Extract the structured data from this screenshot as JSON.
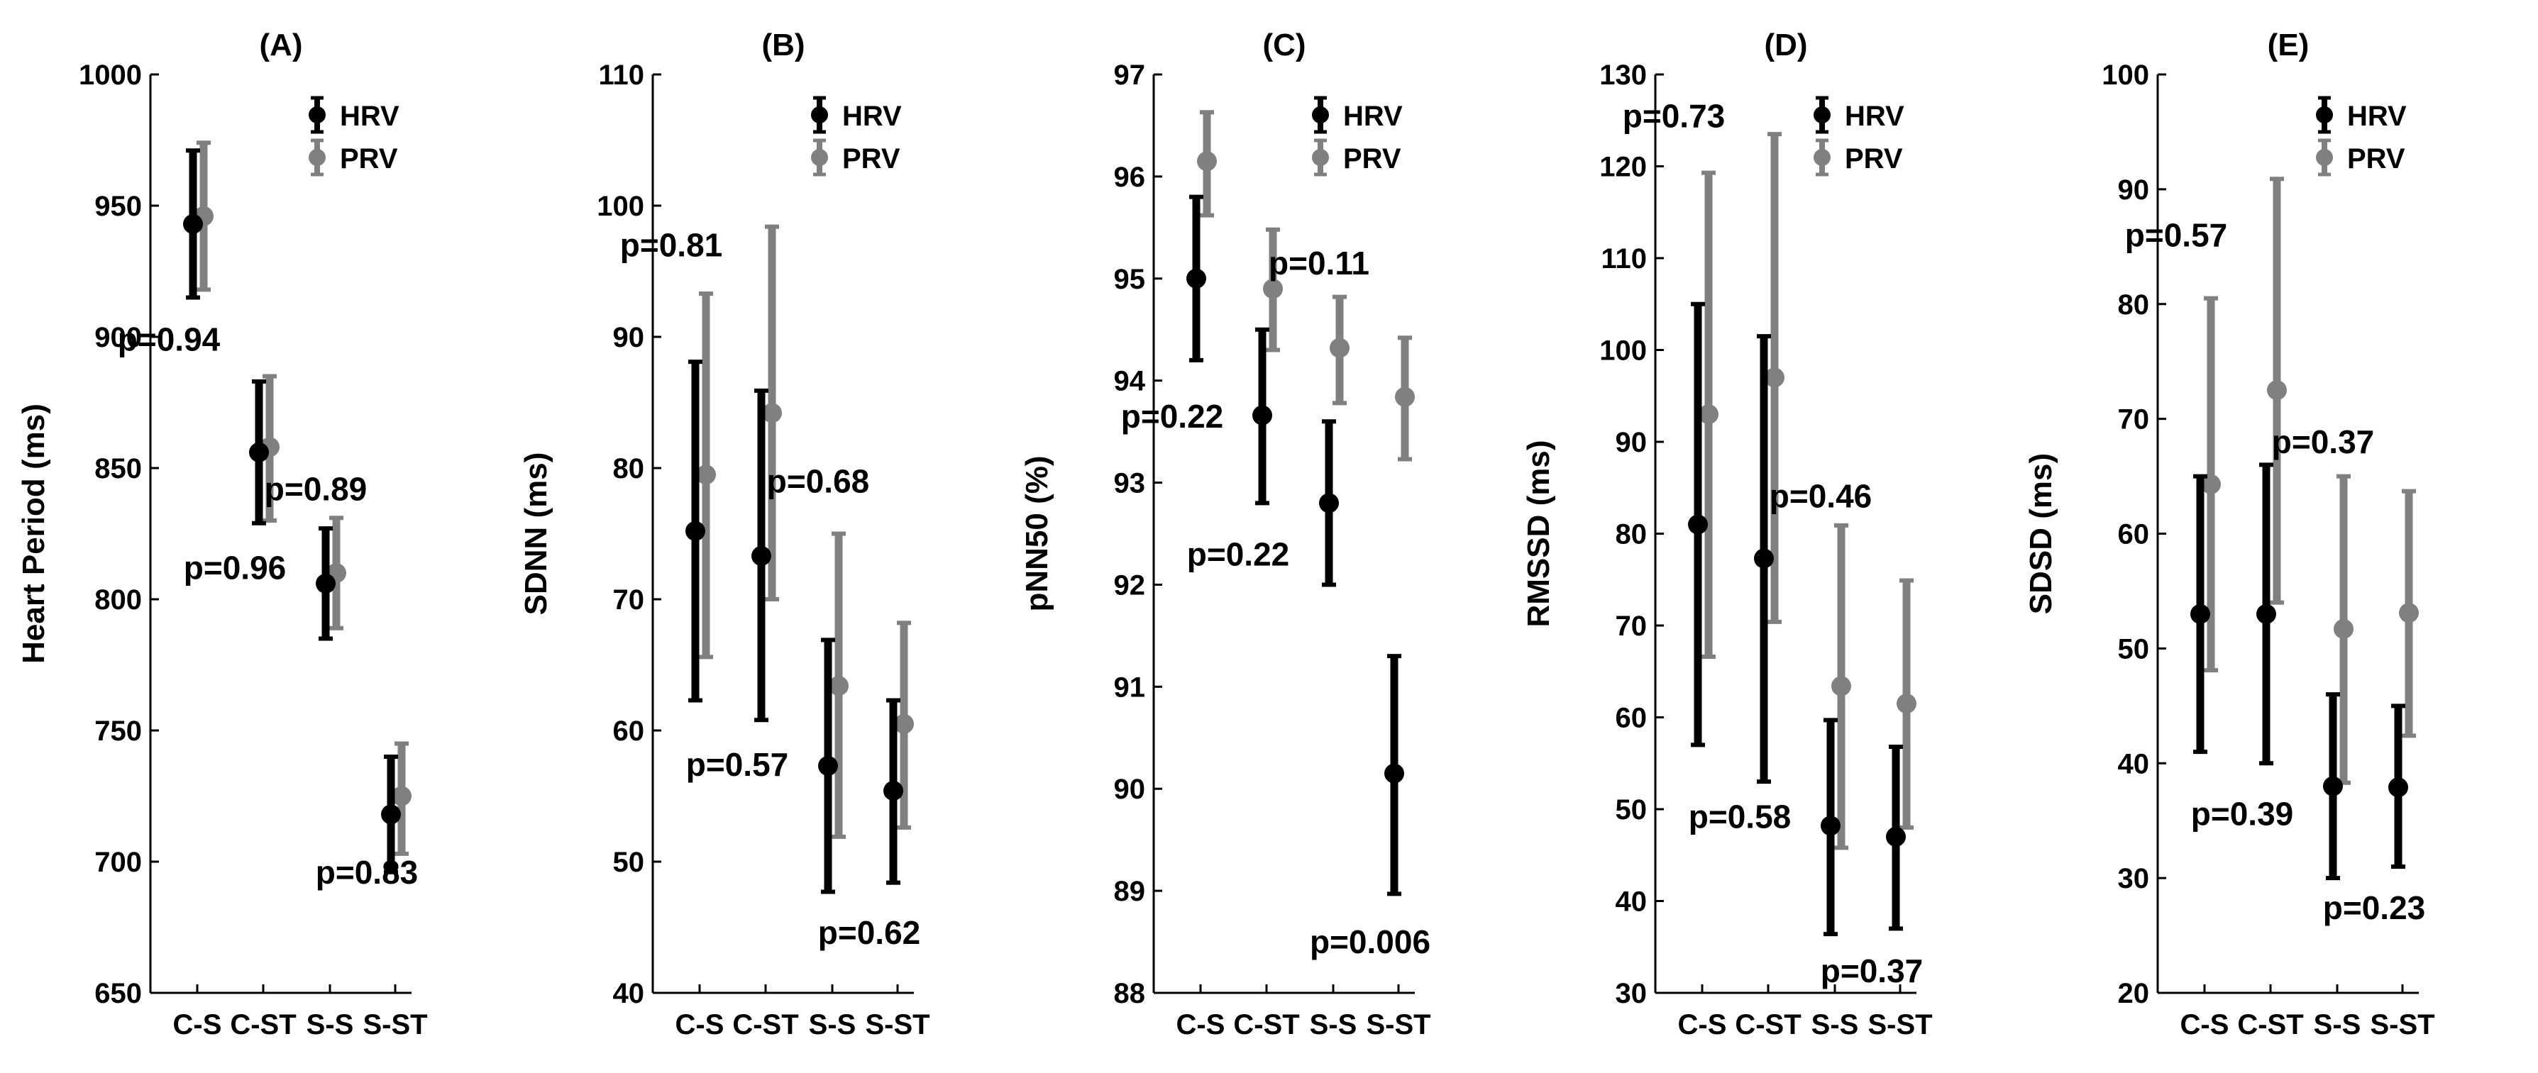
{
  "colors": {
    "hrv": "#000000",
    "prv": "#808080",
    "axis": "#000000",
    "background": "#ffffff"
  },
  "chart_data": [
    {
      "type": "errorbar",
      "title": "(A)",
      "ylabel": "Heart Period (ms)",
      "xlabel": "",
      "ylim": [
        650,
        1000
      ],
      "yticks": [
        650,
        700,
        750,
        800,
        850,
        900,
        950,
        1000
      ],
      "categories": [
        "C-S",
        "C-ST",
        "S-S",
        "S-ST"
      ],
      "legend": {
        "position": "top-right",
        "entries": [
          "HRV",
          "PRV"
        ]
      },
      "series": [
        {
          "name": "HRV",
          "mean": [
            943,
            856,
            806,
            718
          ],
          "lower": [
            915,
            829,
            785,
            696
          ],
          "upper": [
            971,
            883,
            827,
            740
          ]
        },
        {
          "name": "PRV",
          "mean": [
            946,
            858,
            810,
            725
          ],
          "lower": [
            918,
            830,
            789,
            703
          ],
          "upper": [
            974,
            885,
            831,
            745
          ]
        }
      ],
      "annotations": [
        {
          "text": "p=0.94",
          "x": 0,
          "y": 899
        },
        {
          "text": "p=0.96",
          "x": 1,
          "y": 812
        },
        {
          "text": "p=0.89",
          "x": 2,
          "y": 842
        },
        {
          "text": "p=0.83",
          "x": 3,
          "y": 696
        }
      ]
    },
    {
      "type": "errorbar",
      "title": "(B)",
      "ylabel": "SDNN (ms)",
      "xlabel": "",
      "ylim": [
        40,
        110
      ],
      "yticks": [
        40,
        50,
        60,
        70,
        80,
        90,
        100,
        110
      ],
      "categories": [
        "C-S",
        "C-ST",
        "S-S",
        "S-ST"
      ],
      "legend": {
        "position": "top-right",
        "entries": [
          "HRV",
          "PRV"
        ]
      },
      "series": [
        {
          "name": "HRV",
          "mean": [
            75.2,
            73.3,
            57.3,
            55.4
          ],
          "lower": [
            62.3,
            60.8,
            47.7,
            48.4
          ],
          "upper": [
            88.1,
            85.9,
            66.9,
            62.3
          ]
        },
        {
          "name": "PRV",
          "mean": [
            79.5,
            84.2,
            63.4,
            60.5
          ],
          "lower": [
            65.6,
            70.0,
            51.9,
            52.6
          ],
          "upper": [
            93.3,
            98.4,
            75.0,
            68.2
          ]
        }
      ],
      "annotations": [
        {
          "text": "p=0.81",
          "x": 0,
          "y": 97
        },
        {
          "text": "p=0.57",
          "x": 1,
          "y": 57.4
        },
        {
          "text": "p=0.68",
          "x": 2,
          "y": 79
        },
        {
          "text": "p=0.62",
          "x": 3,
          "y": 44.6
        }
      ]
    },
    {
      "type": "errorbar",
      "title": "(C)",
      "ylabel": "pNN50 (%)",
      "xlabel": "",
      "ylim": [
        88,
        97
      ],
      "yticks": [
        88,
        89,
        90,
        91,
        92,
        93,
        94,
        95,
        96,
        97
      ],
      "categories": [
        "C-S",
        "C-ST",
        "S-S",
        "S-ST"
      ],
      "legend": {
        "position": "top-right",
        "entries": [
          "HRV",
          "PRV"
        ]
      },
      "series": [
        {
          "name": "HRV",
          "mean": [
            95.0,
            93.66,
            92.8,
            90.15
          ],
          "lower": [
            94.2,
            92.8,
            92.0,
            88.97
          ],
          "upper": [
            95.8,
            94.5,
            93.6,
            91.3
          ]
        },
        {
          "name": "PRV",
          "mean": [
            96.15,
            94.9,
            94.32,
            93.84
          ],
          "lower": [
            95.62,
            94.3,
            93.78,
            93.23
          ],
          "upper": [
            96.63,
            95.48,
            94.82,
            94.42
          ]
        }
      ],
      "annotations": [
        {
          "text": "p=0.22",
          "x": 0,
          "y": 93.65
        },
        {
          "text": "p=0.22",
          "x": 1,
          "y": 92.3
        },
        {
          "text": "p=0.11",
          "x": 2,
          "y": 95.15
        },
        {
          "text": "p=0.006",
          "x": 3,
          "y": 88.5
        }
      ]
    },
    {
      "type": "errorbar",
      "title": "(D)",
      "ylabel": "RMSSD (ms)",
      "xlabel": "",
      "ylim": [
        30,
        130
      ],
      "yticks": [
        30,
        40,
        50,
        60,
        70,
        80,
        90,
        100,
        110,
        120,
        130
      ],
      "categories": [
        "C-S",
        "C-ST",
        "S-S",
        "S-ST"
      ],
      "legend": {
        "position": "top-right",
        "entries": [
          "HRV",
          "PRV"
        ]
      },
      "series": [
        {
          "name": "HRV",
          "mean": [
            81.0,
            77.3,
            48.2,
            47.0
          ],
          "lower": [
            57.0,
            53.0,
            36.4,
            37.0
          ],
          "upper": [
            105.0,
            101.5,
            59.7,
            56.8
          ]
        },
        {
          "name": "PRV",
          "mean": [
            93.0,
            97.0,
            63.4,
            61.5
          ],
          "lower": [
            66.6,
            70.4,
            45.8,
            48.0
          ],
          "upper": [
            119.3,
            123.5,
            80.9,
            74.9
          ]
        }
      ],
      "annotations": [
        {
          "text": "p=0.73",
          "x": 0,
          "y": 125.5
        },
        {
          "text": "p=0.58",
          "x": 1,
          "y": 49.2
        },
        {
          "text": "p=0.46",
          "x": 2,
          "y": 84.1
        },
        {
          "text": "p=0.37",
          "x": 3,
          "y": 32.4
        }
      ]
    },
    {
      "type": "errorbar",
      "title": "(E)",
      "ylabel": "SDSD (ms)",
      "xlabel": "",
      "ylim": [
        20,
        100
      ],
      "yticks": [
        20,
        30,
        40,
        50,
        60,
        70,
        80,
        90,
        100
      ],
      "categories": [
        "C-S",
        "C-ST",
        "S-S",
        "S-ST"
      ],
      "legend": {
        "position": "top-right",
        "entries": [
          "HRV",
          "PRV"
        ]
      },
      "series": [
        {
          "name": "HRV",
          "mean": [
            53.0,
            53.0,
            38.0,
            37.9
          ],
          "lower": [
            41.0,
            40.0,
            30.0,
            31.0
          ],
          "upper": [
            65.0,
            66.0,
            46.0,
            45.0
          ]
        },
        {
          "name": "PRV",
          "mean": [
            64.3,
            72.5,
            51.7,
            53.1
          ],
          "lower": [
            48.1,
            54.0,
            38.3,
            42.4
          ],
          "upper": [
            80.5,
            90.9,
            65.0,
            63.7
          ]
        }
      ],
      "annotations": [
        {
          "text": "p=0.57",
          "x": 0,
          "y": 86
        },
        {
          "text": "p=0.39",
          "x": 1,
          "y": 35.6
        },
        {
          "text": "p=0.37",
          "x": 2,
          "y": 68
        },
        {
          "text": "p=0.23",
          "x": 3,
          "y": 27.4
        }
      ]
    }
  ]
}
